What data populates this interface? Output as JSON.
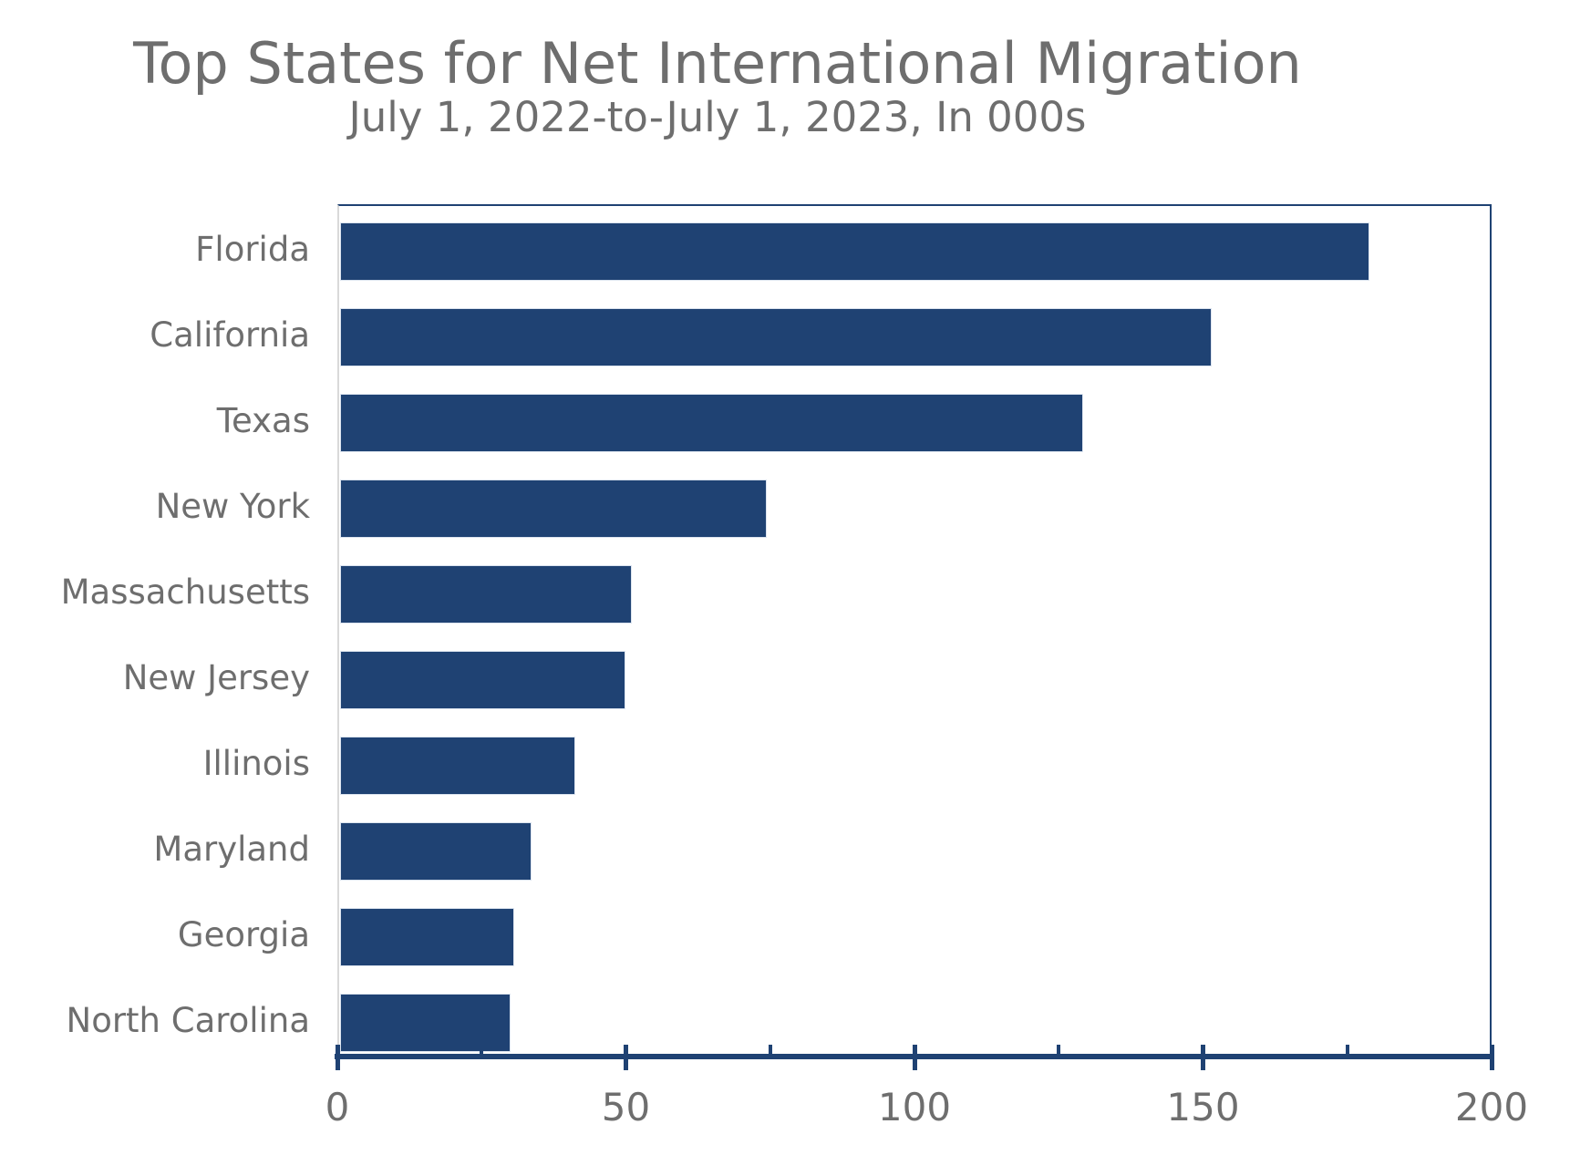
{
  "chart_data": {
    "type": "bar",
    "orientation": "horizontal",
    "title": "Top States for Net International Migration",
    "subtitle": "July 1, 2022-to-July 1, 2023, In 000s",
    "categories": [
      "Florida",
      "California",
      "Texas",
      "New York",
      "Massachusetts",
      "New Jersey",
      "Illinois",
      "Maryland",
      "Georgia",
      "North Carolina"
    ],
    "values": [
      178.4,
      151.0,
      128.7,
      73.9,
      50.6,
      49.5,
      40.8,
      33.2,
      30.2,
      29.5
    ],
    "xlabel": "",
    "ylabel": "",
    "xlim": [
      0,
      200
    ],
    "x_major_ticks": [
      0,
      50,
      100,
      150,
      200
    ],
    "x_major_tick_labels": [
      "0",
      "50",
      "100",
      "150",
      "200"
    ],
    "x_minor_ticks": [
      25,
      75,
      125,
      175
    ],
    "grid": false,
    "legend": false,
    "bar_color": "#1F4273",
    "axis_color": "#1F4273",
    "label_color": "#6E6E6E"
  }
}
